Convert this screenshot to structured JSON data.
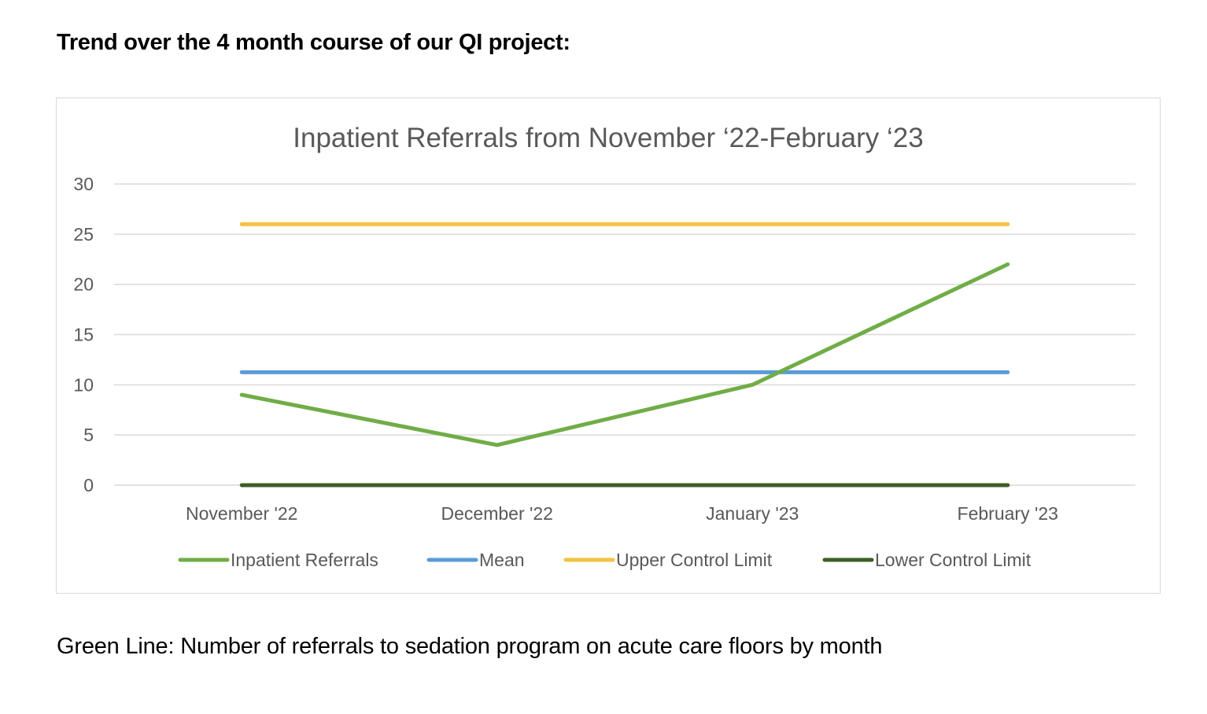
{
  "heading": "Trend over the 4 month course of our QI project:",
  "caption": "Green Line: Number of referrals to sedation program on acute care floors by month",
  "chart_data": {
    "type": "line",
    "title": "Inpatient Referrals from November ‘22-February ‘23",
    "xlabel": "",
    "ylabel": "",
    "categories": [
      "November '22",
      "December '22",
      "January '23",
      "February '23"
    ],
    "ylim": [
      0,
      30
    ],
    "yticks": [
      0,
      5,
      10,
      15,
      20,
      25,
      30
    ],
    "grid": true,
    "legend_position": "bottom",
    "series": [
      {
        "name": "Inpatient Referrals",
        "color": "#70ad47",
        "values": [
          9,
          4,
          10,
          22
        ]
      },
      {
        "name": "Mean",
        "color": "#5b9bd5",
        "values": [
          11.25,
          11.25,
          11.25,
          11.25
        ]
      },
      {
        "name": "Upper Control Limit",
        "color": "#f4c242",
        "values": [
          26,
          26,
          26,
          26
        ]
      },
      {
        "name": "Lower Control Limit",
        "color": "#3d5f26",
        "values": [
          0,
          0,
          0,
          0
        ]
      }
    ]
  }
}
